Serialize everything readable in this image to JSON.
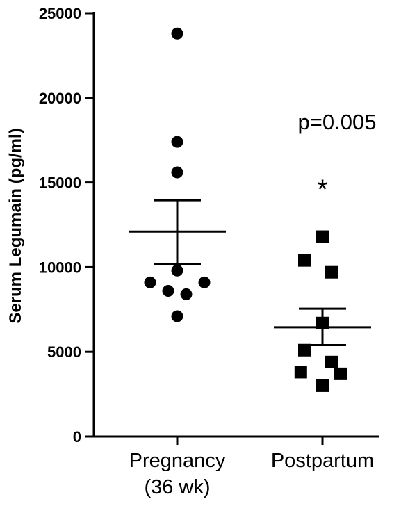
{
  "chart_data": {
    "type": "scatter",
    "ylabel": "Serum Legumain (pg/ml)",
    "xlabel": "",
    "ylim": [
      0,
      25000
    ],
    "yticks": [
      0,
      5000,
      10000,
      15000,
      20000,
      25000
    ],
    "categories": [
      {
        "lines": [
          "Pregnancy",
          "(36 wk)"
        ]
      },
      {
        "lines": [
          "Postpartum"
        ]
      }
    ],
    "series": [
      {
        "marker": "circle",
        "values": [
          23800,
          17400,
          15600,
          9800,
          9100,
          9100,
          8600,
          8400,
          7100
        ],
        "jitter": [
          0,
          0,
          0,
          0,
          -1.5,
          1.5,
          -0.5,
          0.5,
          0
        ],
        "mean": 12100,
        "sem_low": 10200,
        "sem_high": 13950
      },
      {
        "marker": "square",
        "values": [
          11800,
          10400,
          9700,
          6700,
          5100,
          4400,
          3800,
          3700,
          3000
        ],
        "jitter": [
          0,
          -1,
          0.5,
          0,
          -1,
          0.5,
          -1.2,
          1,
          0
        ],
        "mean": 6450,
        "sem_low": 5400,
        "sem_high": 7550
      }
    ],
    "annotations": {
      "pvalue": "p=0.005",
      "significance": "*"
    },
    "colors": {
      "marker": "#000000",
      "axis": "#000000"
    }
  }
}
